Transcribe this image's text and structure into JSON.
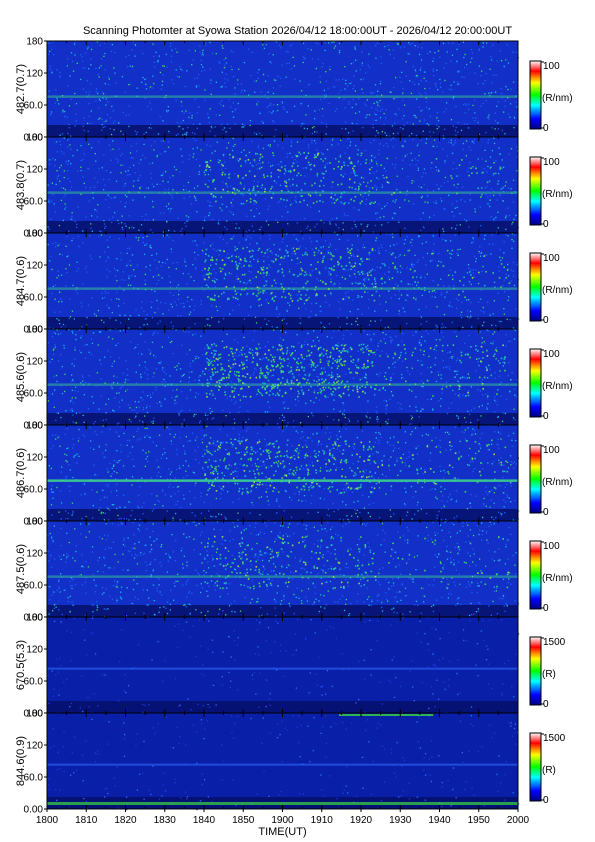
{
  "title": "Scanning Photomter at Syowa Station 2026/04/12 18:00:00UT - 2026/04/12 20:00:00UT",
  "chart_data": {
    "type": "heatmap",
    "xlabel": "TIME(UT)",
    "x_ticks": [
      "1800",
      "1810",
      "1820",
      "1830",
      "1840",
      "1850",
      "1900",
      "1910",
      "1920",
      "1930",
      "1940",
      "1950",
      "2000"
    ],
    "y_ticks": [
      "0.00",
      "60.0",
      "120",
      "180"
    ],
    "ylim": [
      0,
      180
    ],
    "colormap": [
      "#000080",
      "#0000ff",
      "#00ffff",
      "#00ff00",
      "#ffff00",
      "#ff0000",
      "#ffffff"
    ],
    "panels": [
      {
        "ylabel": "482.7(0.7)",
        "cbar_max": "100",
        "cbar_min": "0",
        "cbar_unit": "(R/nm)"
      },
      {
        "ylabel": "483.8(0.7)",
        "cbar_max": "100",
        "cbar_min": "0",
        "cbar_unit": "(R/nm)"
      },
      {
        "ylabel": "484.7(0.6)",
        "cbar_max": "100",
        "cbar_min": "0",
        "cbar_unit": "(R/nm)"
      },
      {
        "ylabel": "485.6(0.6)",
        "cbar_max": "100",
        "cbar_min": "0",
        "cbar_unit": "(R/nm)"
      },
      {
        "ylabel": "486.7(0.6)",
        "cbar_max": "100",
        "cbar_min": "0",
        "cbar_unit": "(R/nm)"
      },
      {
        "ylabel": "487.5(0.6)",
        "cbar_max": "100",
        "cbar_min": "0",
        "cbar_unit": "(R/nm)"
      },
      {
        "ylabel": "670.5(5.3)",
        "cbar_max": "1500",
        "cbar_min": "0",
        "cbar_unit": "(R)"
      },
      {
        "ylabel": "844.6(0.9)",
        "cbar_max": "1500",
        "cbar_min": "0",
        "cbar_unit": "(R)"
      }
    ]
  }
}
